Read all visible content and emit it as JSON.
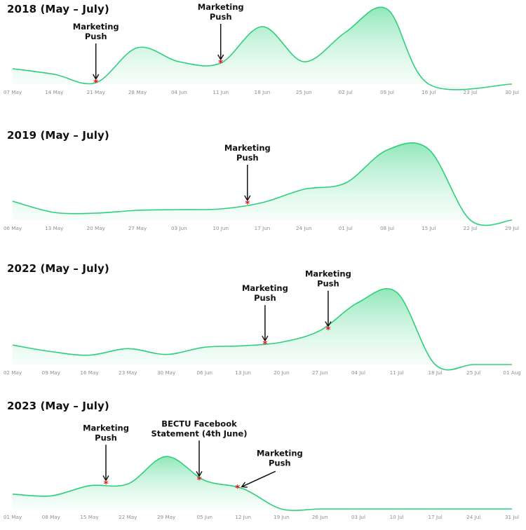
{
  "colors": {
    "line": "#2ecf7a",
    "fill_top": "#7fe3ae",
    "fill_bottom": "#f1fcf6",
    "marker": "#e01010",
    "arrow": "#111111",
    "tick": "#8a8f99"
  },
  "chart_data": [
    {
      "type": "area",
      "title": "2018 (May – July)",
      "x_ticks": [
        "07 May",
        "14 May",
        "21 May",
        "28 May",
        "04 Jun",
        "11 Jun",
        "18 Jun",
        "25 Jun",
        "02 Jul",
        "09 Jul",
        "16 Jul",
        "23 Jul",
        "30 Jul"
      ],
      "x_range": [
        0,
        84
      ],
      "y_range": [
        0,
        100
      ],
      "series": [
        {
          "points": [
            [
              0,
              22
            ],
            [
              7,
              14
            ],
            [
              14,
              2
            ],
            [
              21,
              52
            ],
            [
              28,
              32
            ],
            [
              35,
              30
            ],
            [
              42,
              82
            ],
            [
              49,
              32
            ],
            [
              56,
              74
            ],
            [
              63,
              107
            ],
            [
              70,
              0
            ],
            [
              84,
              0
            ]
          ]
        }
      ],
      "annotations": [
        {
          "x": 14,
          "y": 2,
          "lines": [
            "Marketing",
            "Push"
          ]
        },
        {
          "x": 35,
          "y": 30,
          "lines": [
            "Marketing",
            "Push"
          ]
        }
      ]
    },
    {
      "type": "area",
      "title": "2019 (May – July)",
      "x_ticks": [
        "06 May",
        "13 May",
        "20 May",
        "27 May",
        "03 Jun",
        "10 Jun",
        "17 Jun",
        "24 Jun",
        "01 Jul",
        "08 Jul",
        "15 Jul",
        "22 Jul",
        "29 Jul"
      ],
      "x_range": [
        0,
        84
      ],
      "y_range": [
        0,
        100
      ],
      "series": [
        {
          "points": [
            [
              0,
              27
            ],
            [
              7,
              11
            ],
            [
              14,
              10
            ],
            [
              21,
              14
            ],
            [
              28,
              15
            ],
            [
              35,
              16
            ],
            [
              42,
              25
            ],
            [
              49,
              44
            ],
            [
              56,
              53
            ],
            [
              63,
              100
            ],
            [
              70,
              101
            ],
            [
              77,
              0
            ],
            [
              84,
              0
            ]
          ]
        }
      ],
      "annotations": [
        {
          "x": 39.5,
          "y": 23,
          "lines": [
            "Marketing",
            "Push"
          ]
        }
      ]
    },
    {
      "type": "area",
      "title": "2022 (May – July)",
      "x_ticks": [
        "02 May",
        "09 May",
        "16 May",
        "23 May",
        "30 May",
        "06 Jun",
        "13 Jun",
        "20 Jun",
        "27 Jun",
        "04 Jul",
        "11 Jul",
        "18 Jul",
        "25 Jul",
        "01 Aug"
      ],
      "x_range": [
        0,
        91
      ],
      "y_range": [
        0,
        100
      ],
      "series": [
        {
          "points": [
            [
              0,
              27
            ],
            [
              7,
              18
            ],
            [
              14,
              13
            ],
            [
              21,
              22
            ],
            [
              28,
              14
            ],
            [
              35,
              24
            ],
            [
              42,
              26
            ],
            [
              49,
              31
            ],
            [
              56,
              47
            ],
            [
              63,
              86
            ],
            [
              70,
              100
            ],
            [
              77,
              0
            ],
            [
              84,
              0
            ],
            [
              91,
              0
            ]
          ]
        }
      ],
      "annotations": [
        {
          "x": 46,
          "y": 28,
          "lines": [
            "Marketing",
            "Push"
          ]
        },
        {
          "x": 57.5,
          "y": 48,
          "lines": [
            "Marketing",
            "Push"
          ]
        }
      ]
    },
    {
      "type": "area",
      "title": "2023 (May – July)",
      "x_ticks": [
        "01 May",
        "08 May",
        "15 May",
        "22 May",
        "29 May",
        "05 Jun",
        "12 Jun",
        "19 Jun",
        "26 Jun",
        "03 Jul",
        "10 Jul",
        "17 Jul",
        "24 Jul",
        "31 Jul"
      ],
      "x_range": [
        0,
        91
      ],
      "y_range": [
        0,
        100
      ],
      "series": [
        {
          "points": [
            [
              0,
              25
            ],
            [
              7,
              22
            ],
            [
              14,
              39
            ],
            [
              21,
              42
            ],
            [
              28,
              88
            ],
            [
              35,
              48
            ],
            [
              42,
              34
            ],
            [
              49,
              0
            ],
            [
              56,
              0
            ],
            [
              63,
              0
            ],
            [
              70,
              0
            ],
            [
              77,
              0
            ],
            [
              84,
              0
            ],
            [
              91,
              0
            ]
          ]
        }
      ],
      "annotations": [
        {
          "x": 17,
          "y": 42,
          "lines": [
            "Marketing",
            "Push"
          ]
        },
        {
          "x": 34,
          "y": 49,
          "lines": [
            "BECTU Facebook",
            "Statement (4th June)"
          ]
        },
        {
          "x": 41,
          "y": 35,
          "lines": [
            "Marketing",
            "Push"
          ],
          "offset": "right"
        }
      ]
    }
  ]
}
